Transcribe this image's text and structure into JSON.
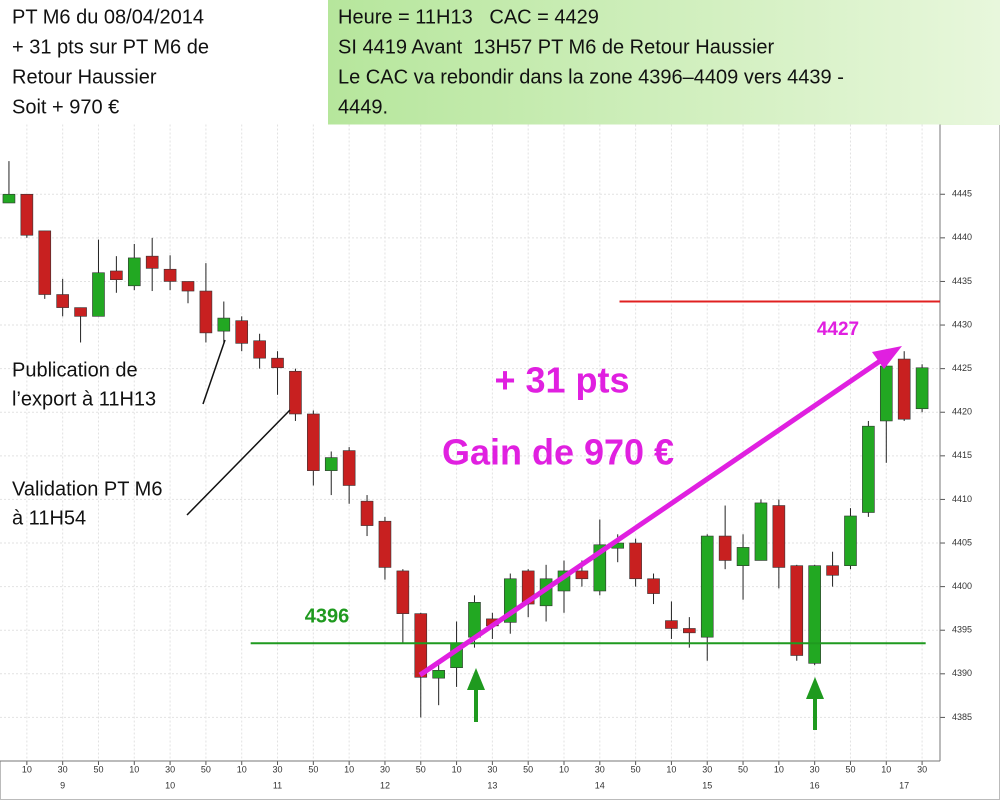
{
  "header": {
    "left": [
      "PT M6 du 08/04/2014",
      "+ 31 pts sur PT M6 de",
      "Retour Haussier",
      "Soit + 970 €"
    ],
    "right": [
      "Heure = 11H13   CAC = 4429",
      "SI 4419 Avant  13H57 PT M6 de Retour Haussier",
      "Le CAC va rebondir dans la zone 4396–4409 vers 4439 -",
      "4449."
    ]
  },
  "chart_data": {
    "type": "candlestick",
    "x": [
      0,
      10,
      20,
      30,
      40,
      50,
      60,
      70,
      80,
      90,
      100,
      110,
      120,
      130,
      140,
      150,
      160,
      170,
      180,
      190,
      200,
      210,
      220,
      230,
      240,
      250,
      260,
      270,
      280,
      290,
      300,
      310,
      320,
      330,
      340,
      350,
      360,
      370,
      380,
      390,
      400,
      410,
      420,
      430,
      440,
      450,
      460,
      470,
      480,
      490,
      500,
      510
    ],
    "open": [
      4444,
      4445,
      4440.8,
      4433.5,
      4432,
      4431,
      4436.2,
      4434.5,
      4437.9,
      4436.4,
      4435,
      4433.9,
      4429.3,
      4430.5,
      4428.2,
      4426.2,
      4424.7,
      4419.8,
      4413.3,
      4415.6,
      4409.8,
      4407.5,
      4401.8,
      4396.9,
      4389.5,
      4390.7,
      4394.2,
      4396.3,
      4395.9,
      4401.8,
      4397.8,
      4399.5,
      4401.8,
      4399.5,
      4404.4,
      4405,
      4400.9,
      4396.1,
      4395.2,
      4394.2,
      4405.8,
      4402.4,
      4403,
      4409.3,
      4402.4,
      4391.2,
      4402.4,
      4402.4,
      4408.5,
      4419,
      4426.1,
      4420.4
    ],
    "high": [
      4448.8,
      4445,
      4440.8,
      4435.3,
      4432,
      4439.8,
      4437.9,
      4439.3,
      4440,
      4438,
      4435,
      4437.1,
      4432.7,
      4431,
      4429,
      4427,
      4425,
      4420.2,
      4415.5,
      4416,
      4410.5,
      4408,
      4402,
      4397,
      4391,
      4396,
      4399,
      4397,
      4401.5,
      4402,
      4402.5,
      4403,
      4403,
      4407.7,
      4406,
      4405.5,
      4401.5,
      4398.3,
      4396.5,
      4406,
      4409.3,
      4406,
      4410,
      4410,
      4402.5,
      4402.5,
      4404,
      4409,
      4419,
      4426,
      4427,
      4425.5
    ],
    "low": [
      4444,
      4440,
      4433,
      4431,
      4428,
      4431,
      4433.7,
      4434,
      4433.9,
      4434,
      4432.5,
      4428,
      4428,
      4427,
      4425,
      4422,
      4419,
      4411.6,
      4410.5,
      4409.5,
      4405.8,
      4400.8,
      4393.5,
      4385,
      4386.4,
      4388.5,
      4393,
      4394,
      4394.6,
      4396.5,
      4396,
      4397,
      4400,
      4399,
      4402.8,
      4400,
      4398,
      4394,
      4393,
      4391.5,
      4402,
      4398.5,
      4403,
      4399.8,
      4391.5,
      4391,
      4400,
      4402,
      4408,
      4414.2,
      4419,
      4420
    ],
    "close": [
      4445,
      4440.3,
      4433.5,
      4432,
      4431,
      4436,
      4435.2,
      4437.7,
      4436.5,
      4435,
      4433.9,
      4429.1,
      4430.8,
      4427.9,
      4426.2,
      4425.1,
      4419.8,
      4413.3,
      4414.8,
      4411.6,
      4407,
      4402.2,
      4396.9,
      4389.6,
      4390.4,
      4393.5,
      4398.2,
      4395.5,
      4400.9,
      4398,
      4400.9,
      4401.8,
      4400.9,
      4404.8,
      4405,
      4400.9,
      4399.2,
      4395.2,
      4394.7,
      4405.8,
      4403,
      4404.5,
      4409.6,
      4402.2,
      4392.1,
      4402.4,
      4401.3,
      4408.1,
      4418.4,
      4425.3,
      4419.2,
      4425.1
    ],
    "up_color": "#22a822",
    "down_color": "#c82020",
    "xlim": [
      -5,
      520
    ],
    "ylim": [
      4380,
      4453
    ],
    "yticks": [
      4385,
      4390,
      4395,
      4400,
      4405,
      4410,
      4415,
      4420,
      4425,
      4430,
      4435,
      4440,
      4445
    ],
    "xticks": [
      {
        "value": 10,
        "label": "10"
      },
      {
        "value": 30,
        "label": "30"
      },
      {
        "value": 50,
        "label": "50"
      },
      {
        "value": 70,
        "label": "10"
      },
      {
        "value": 90,
        "label": "30"
      },
      {
        "value": 110,
        "label": "50"
      },
      {
        "value": 130,
        "label": "10"
      },
      {
        "value": 150,
        "label": "30"
      },
      {
        "value": 170,
        "label": "50"
      },
      {
        "value": 190,
        "label": "10"
      },
      {
        "value": 210,
        "label": "30"
      },
      {
        "value": 230,
        "label": "50"
      },
      {
        "value": 250,
        "label": "10"
      },
      {
        "value": 270,
        "label": "30"
      },
      {
        "value": 290,
        "label": "50"
      },
      {
        "value": 310,
        "label": "10"
      },
      {
        "value": 330,
        "label": "30"
      },
      {
        "value": 350,
        "label": "50"
      },
      {
        "value": 370,
        "label": "10"
      },
      {
        "value": 390,
        "label": "30"
      },
      {
        "value": 410,
        "label": "50"
      },
      {
        "value": 430,
        "label": "10"
      },
      {
        "value": 450,
        "label": "30"
      },
      {
        "value": 470,
        "label": "50"
      },
      {
        "value": 490,
        "label": "10"
      },
      {
        "value": 510,
        "label": "30"
      }
    ],
    "hour_labels": [
      {
        "value": 30,
        "label": "9"
      },
      {
        "value": 90,
        "label": "10"
      },
      {
        "value": 150,
        "label": "11"
      },
      {
        "value": 210,
        "label": "12"
      },
      {
        "value": 270,
        "label": "13"
      },
      {
        "value": 330,
        "label": "14"
      },
      {
        "value": 390,
        "label": "15"
      },
      {
        "value": 450,
        "label": "16"
      },
      {
        "value": 500,
        "label": "17"
      }
    ],
    "grid": true,
    "lines": [
      {
        "value": 4432.7,
        "x_range": [
          341,
          520
        ],
        "color": "#e02020"
      },
      {
        "value": 4393.5,
        "x_range": [
          135,
          512
        ],
        "color": "#1f9a1f"
      }
    ],
    "annotations": {
      "level_label": "4396",
      "gain_pts": "+ 31 pts",
      "gain_eur": "Gain de 970 €",
      "peak_label": "4427",
      "publication": [
        "Publication de",
        "l’export à 11H13"
      ],
      "validation": [
        "Validation PT M6",
        "à 11H54"
      ]
    }
  }
}
